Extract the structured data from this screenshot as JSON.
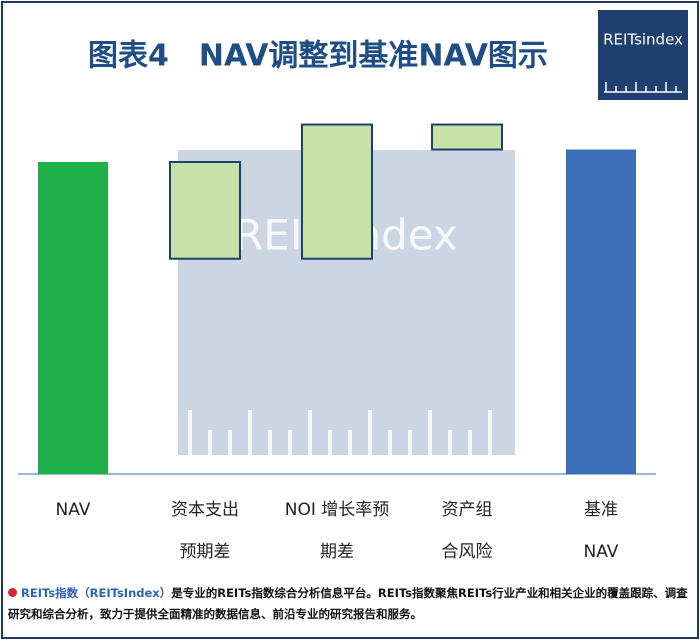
{
  "header": {
    "title": "图表4　NAV调整到基准NAV图示",
    "logo": "REITsindex"
  },
  "chart_data": {
    "type": "waterfall",
    "watermark": "REITsindex",
    "categories": [
      [
        "NAV"
      ],
      [
        "资本支出",
        "预期差"
      ],
      [
        "NOI 增长率预",
        "期差"
      ],
      [
        "资产组",
        "合风险"
      ],
      [
        "基准",
        "NAV"
      ]
    ],
    "values": [
      100,
      -31,
      43,
      -8,
      104
    ],
    "totals": [
      true,
      false,
      false,
      false,
      true
    ],
    "colors": [
      "#1fb04a",
      "#c7e3a8",
      "#c7e3a8",
      "#c7e3a8",
      "#3a6fb8"
    ]
  },
  "footer": {
    "brand": "REITs指数（REITsIndex）",
    "text": "是专业的REITs指数综合分析信息平台。REITs指数聚焦REITs行业产业和相关企业的覆盖跟踪、调查研究和综合分析，致力于提供全面精准的数据信息、前沿专业的研究报告和服务。"
  }
}
